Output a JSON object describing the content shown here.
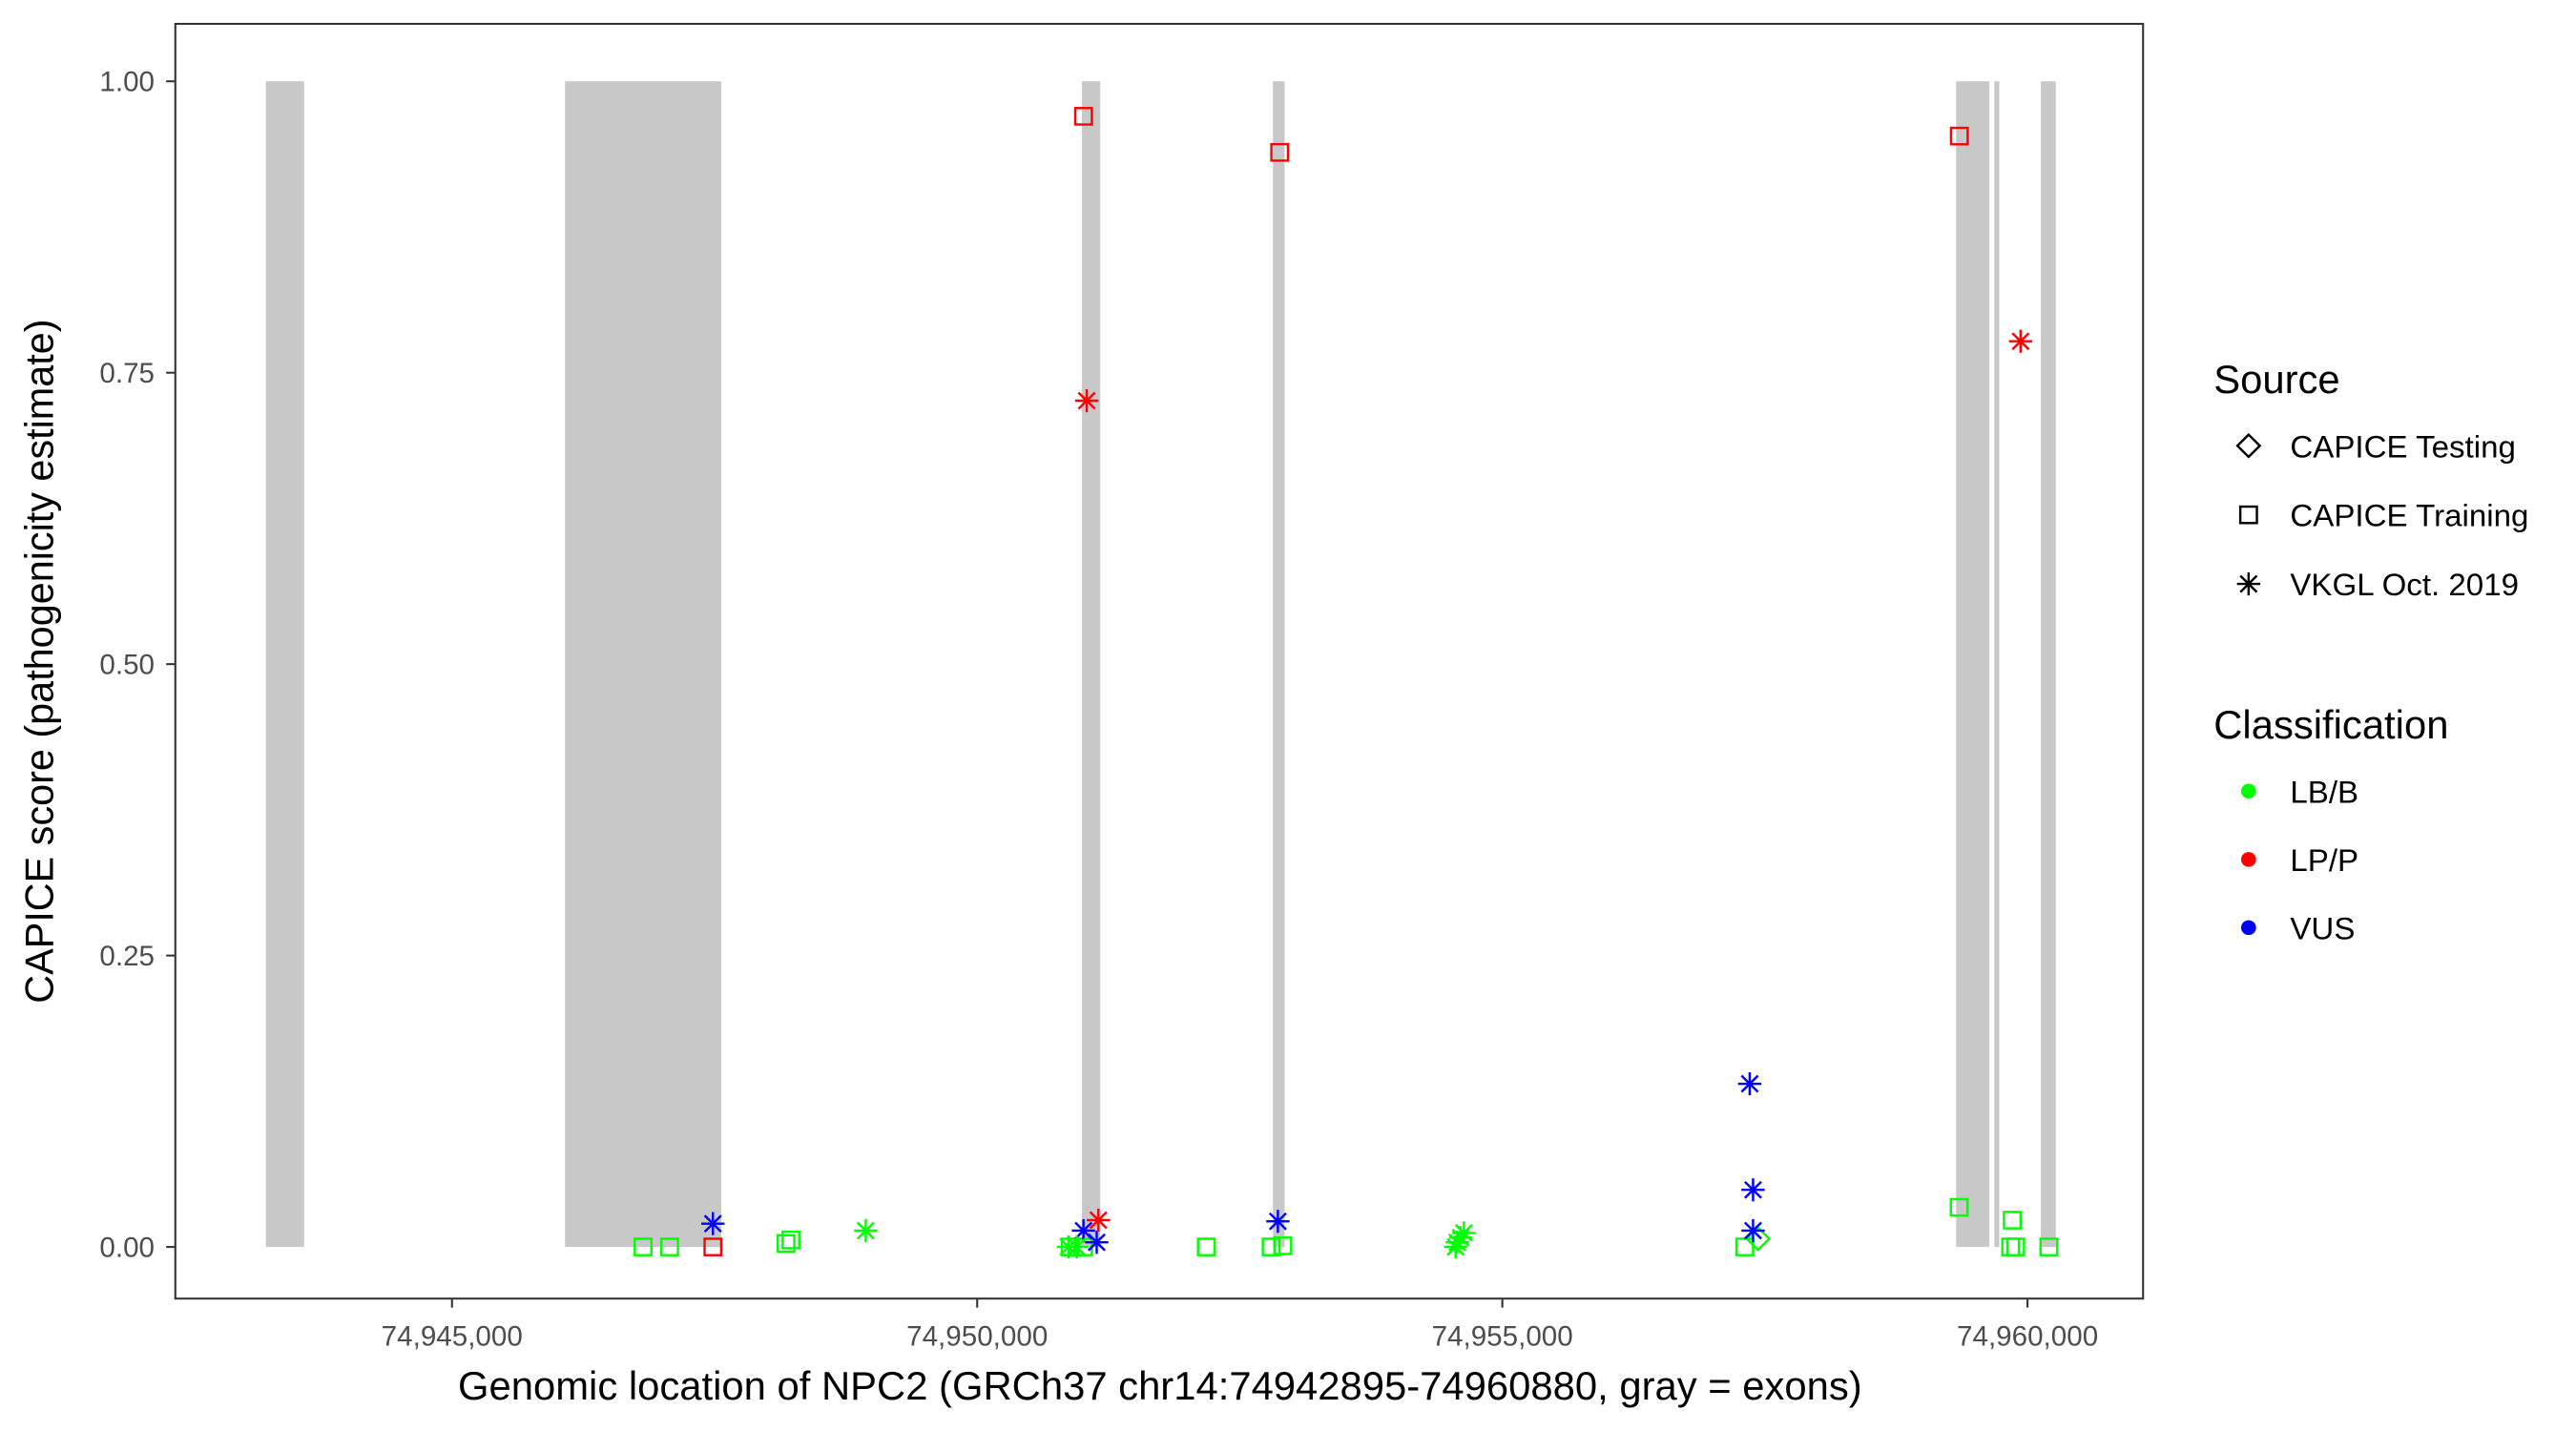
{
  "chart_data": {
    "type": "scatter",
    "xlabel": "Genomic location of NPC2 (GRCh37 chr14:74942895-74960880, gray = exons)",
    "ylabel": "CAPICE score (pathogenicity estimate)",
    "xlim": [
      74942358,
      74961108
    ],
    "ylim": [
      -0.045,
      1.05
    ],
    "x_ticks": [
      74945000,
      74950000,
      74955000,
      74960000
    ],
    "x_tick_labels": [
      "74,945,000",
      "74,950,000",
      "74,955,000",
      "74,960,000"
    ],
    "y_ticks": [
      1.0,
      0.75,
      0.5,
      0.25,
      0.0
    ],
    "y_tick_labels": [
      "1.00",
      "0.75",
      "0.50",
      "0.25",
      "0.00"
    ],
    "grid": false,
    "exons": [
      [
        74943228,
        74943592
      ],
      [
        74946076,
        74947563
      ],
      [
        74950997,
        74951171
      ],
      [
        74952816,
        74952927
      ],
      [
        74959320,
        74959636
      ],
      [
        74959684,
        74959731
      ],
      [
        74960127,
        74960269
      ]
    ],
    "legend": {
      "placement": "right",
      "source_title": "Source",
      "sources": [
        {
          "key": "testing",
          "label": "CAPICE Testing",
          "shape": "diamond"
        },
        {
          "key": "training",
          "label": "CAPICE Training",
          "shape": "square"
        },
        {
          "key": "vkgl",
          "label": "VKGL Oct. 2019",
          "shape": "asterisk"
        }
      ],
      "class_title": "Classification",
      "classes": [
        {
          "key": "LB/B",
          "label": "LB/B",
          "color": "#00ff00"
        },
        {
          "key": "LP/P",
          "label": "LP/P",
          "color": "#ff0000"
        },
        {
          "key": "VUS",
          "label": "VUS",
          "color": "#0000ff"
        }
      ]
    },
    "points": [
      {
        "x": 74951013,
        "y": 0.97,
        "source": "training",
        "class": "LP/P"
      },
      {
        "x": 74952880,
        "y": 0.939,
        "source": "training",
        "class": "LP/P"
      },
      {
        "x": 74959351,
        "y": 0.953,
        "source": "training",
        "class": "LP/P"
      },
      {
        "x": 74947484,
        "y": 0.0,
        "source": "training",
        "class": "LP/P"
      },
      {
        "x": 74946819,
        "y": 0.0,
        "source": "training",
        "class": "LB/B"
      },
      {
        "x": 74947072,
        "y": 0.0,
        "source": "training",
        "class": "LB/B"
      },
      {
        "x": 74948180,
        "y": 0.003,
        "source": "training",
        "class": "LB/B"
      },
      {
        "x": 74948227,
        "y": 0.006,
        "source": "training",
        "class": "LB/B"
      },
      {
        "x": 74950885,
        "y": 0.0,
        "source": "training",
        "class": "LB/B"
      },
      {
        "x": 74951012,
        "y": 0.0,
        "source": "training",
        "class": "LB/B"
      },
      {
        "x": 74952182,
        "y": 0.0,
        "source": "training",
        "class": "LB/B"
      },
      {
        "x": 74952799,
        "y": 0.0,
        "source": "training",
        "class": "LB/B"
      },
      {
        "x": 74952910,
        "y": 0.001,
        "source": "training",
        "class": "LB/B"
      },
      {
        "x": 74957308,
        "y": 0.0,
        "source": "training",
        "class": "LB/B"
      },
      {
        "x": 74959349,
        "y": 0.034,
        "source": "training",
        "class": "LB/B"
      },
      {
        "x": 74959855,
        "y": 0.023,
        "source": "training",
        "class": "LB/B"
      },
      {
        "x": 74959839,
        "y": 0.0,
        "source": "training",
        "class": "LB/B"
      },
      {
        "x": 74959887,
        "y": 0.0,
        "source": "training",
        "class": "LB/B"
      },
      {
        "x": 74960203,
        "y": 0.0,
        "source": "training",
        "class": "LB/B"
      },
      {
        "x": 74957434,
        "y": 0.007,
        "source": "testing",
        "class": "LB/B"
      },
      {
        "x": 74951043,
        "y": 0.726,
        "source": "vkgl",
        "class": "LP/P"
      },
      {
        "x": 74959934,
        "y": 0.777,
        "source": "vkgl",
        "class": "LP/P"
      },
      {
        "x": 74951154,
        "y": 0.023,
        "source": "vkgl",
        "class": "LP/P"
      },
      {
        "x": 74947484,
        "y": 0.02,
        "source": "vkgl",
        "class": "VUS"
      },
      {
        "x": 74951012,
        "y": 0.014,
        "source": "vkgl",
        "class": "VUS"
      },
      {
        "x": 74951138,
        "y": 0.004,
        "source": "vkgl",
        "class": "VUS"
      },
      {
        "x": 74952863,
        "y": 0.022,
        "source": "vkgl",
        "class": "VUS"
      },
      {
        "x": 74957355,
        "y": 0.14,
        "source": "vkgl",
        "class": "VUS"
      },
      {
        "x": 74957387,
        "y": 0.049,
        "source": "vkgl",
        "class": "VUS"
      },
      {
        "x": 74957387,
        "y": 0.014,
        "source": "vkgl",
        "class": "VUS"
      },
      {
        "x": 74948939,
        "y": 0.014,
        "source": "vkgl",
        "class": "LB/B"
      },
      {
        "x": 74950869,
        "y": 0.0,
        "source": "vkgl",
        "class": "LB/B"
      },
      {
        "x": 74950948,
        "y": 0.0,
        "source": "vkgl",
        "class": "LB/B"
      },
      {
        "x": 74954555,
        "y": 0.0,
        "source": "vkgl",
        "class": "LB/B"
      },
      {
        "x": 74954571,
        "y": 0.004,
        "source": "vkgl",
        "class": "LB/B"
      },
      {
        "x": 74954603,
        "y": 0.008,
        "source": "vkgl",
        "class": "LB/B"
      },
      {
        "x": 74954634,
        "y": 0.012,
        "source": "vkgl",
        "class": "LB/B"
      }
    ]
  }
}
